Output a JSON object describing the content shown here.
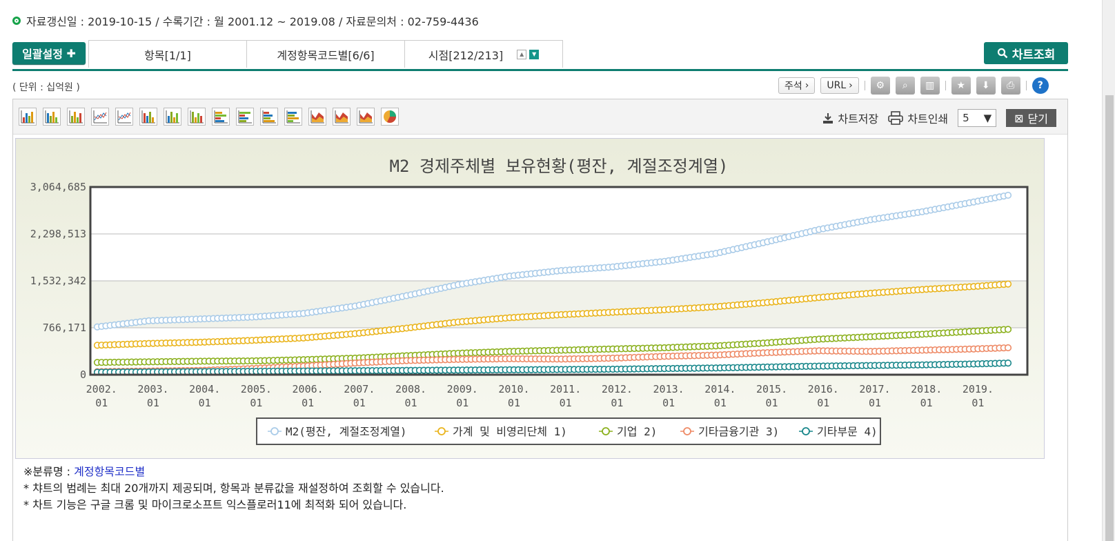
{
  "info": {
    "text": "자료갱신일 : 2019-10-15 / 수록기간 : 월 2001.12 ~ 2019.08 / 자료문의처 : 02-759-4436"
  },
  "tabs": {
    "batch_label": "일괄설정",
    "items": [
      "항목[1/1]",
      "계정항목코드별[6/6]",
      "시점[212/213]"
    ],
    "chart_button": "차트조회"
  },
  "unit_label": "( 단위 : 십억원 )",
  "toolbar": {
    "annotation": "주석",
    "url": "URL"
  },
  "chart_panel": {
    "save": "차트저장",
    "print": "차트인쇄",
    "count": "5",
    "close": "닫기"
  },
  "chart_data": {
    "type": "line",
    "title": "M2 경제주체별 보유현황(평잔, 계절조정계열)",
    "xlabel": "",
    "ylabel": "",
    "ylim": [
      0,
      3064685
    ],
    "yticks": [
      "3,064,685",
      "2,298,513",
      "1,532,342",
      "766,171",
      "0"
    ],
    "xtick_labels": [
      [
        "2002.",
        "01"
      ],
      [
        "2003.",
        "01"
      ],
      [
        "2004.",
        "01"
      ],
      [
        "2005.",
        "01"
      ],
      [
        "2006.",
        "01"
      ],
      [
        "2007.",
        "01"
      ],
      [
        "2008.",
        "01"
      ],
      [
        "2009.",
        "01"
      ],
      [
        "2010.",
        "01"
      ],
      [
        "2011.",
        "01"
      ],
      [
        "2012.",
        "01"
      ],
      [
        "2013.",
        "01"
      ],
      [
        "2014.",
        "01"
      ],
      [
        "2015.",
        "01"
      ],
      [
        "2016.",
        "01"
      ],
      [
        "2017.",
        "01"
      ],
      [
        "2018.",
        "01"
      ],
      [
        "2019.",
        "01"
      ]
    ],
    "x_range": [
      "2001.12",
      "2019.08"
    ],
    "x": [
      "2001.12",
      "2002.12",
      "2003.12",
      "2004.12",
      "2005.12",
      "2006.12",
      "2007.12",
      "2008.12",
      "2009.12",
      "2010.12",
      "2011.12",
      "2012.12",
      "2013.12",
      "2014.12",
      "2015.12",
      "2016.12",
      "2017.12",
      "2018.12",
      "2019.08"
    ],
    "grid": true,
    "legend_position": "bottom",
    "series": [
      {
        "name": "M2(평잔, 계절조정계열)",
        "color": "#a9cbe8",
        "values": [
          780000,
          880000,
          910000,
          940000,
          1000000,
          1120000,
          1290000,
          1470000,
          1610000,
          1700000,
          1760000,
          1850000,
          1980000,
          2170000,
          2370000,
          2530000,
          2660000,
          2820000,
          2930000
        ]
      },
      {
        "name": "가계 및 비영리단체 1)",
        "color": "#eab41c",
        "values": [
          480000,
          510000,
          530000,
          560000,
          600000,
          670000,
          760000,
          860000,
          930000,
          980000,
          1020000,
          1060000,
          1110000,
          1180000,
          1260000,
          1330000,
          1390000,
          1440000,
          1480000
        ]
      },
      {
        "name": "기업 2)",
        "color": "#8bb01d",
        "values": [
          200000,
          210000,
          220000,
          225000,
          245000,
          270000,
          310000,
          350000,
          380000,
          400000,
          420000,
          440000,
          470000,
          520000,
          580000,
          620000,
          660000,
          710000,
          740000
        ]
      },
      {
        "name": "기타금융기관 3)",
        "color": "#ee8a66",
        "values": [
          50000,
          60000,
          70000,
          100000,
          140000,
          190000,
          230000,
          250000,
          260000,
          255000,
          270000,
          300000,
          320000,
          360000,
          390000,
          380000,
          400000,
          420000,
          440000
        ]
      },
      {
        "name": "기타부문 4)",
        "color": "#17868a",
        "values": [
          40000,
          45000,
          50000,
          55000,
          60000,
          65000,
          70000,
          75000,
          80000,
          85000,
          90000,
          100000,
          110000,
          125000,
          140000,
          150000,
          160000,
          175000,
          190000
        ]
      }
    ]
  },
  "notes": {
    "category_label": "※분류명 : ",
    "category_value": "계정항목코드별",
    "line1": "* 챠트의 범례는 최대 20개까지 제공되며, 항목과 분류값을 재설정하여 조회할 수 있습니다.",
    "line2": "* 차트 기능은 구글 크롬 및 마이크로소프트 익스플로러11에 최적화 되어 있습니다."
  }
}
